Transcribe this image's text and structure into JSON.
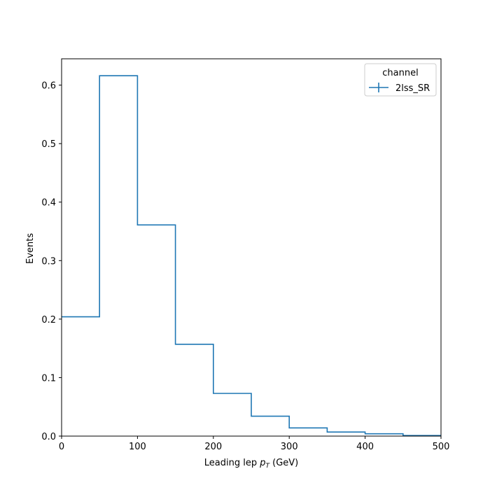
{
  "chart_data": {
    "type": "histogram",
    "series": [
      {
        "name": "2lss_SR",
        "color": "#1f77b4",
        "bin_edges": [
          0,
          50,
          100,
          150,
          200,
          250,
          300,
          350,
          400,
          450,
          500
        ],
        "values": [
          0.204,
          0.616,
          0.361,
          0.157,
          0.073,
          0.034,
          0.014,
          0.007,
          0.004,
          0.001
        ]
      }
    ],
    "xlabel": {
      "prefix": "Leading lep ",
      "symbol": "p",
      "subscript": "T",
      "suffix": " (GeV)"
    },
    "ylabel": "Events",
    "xlim": [
      0,
      500
    ],
    "ylim": [
      0,
      0.645
    ],
    "xticks": [
      0,
      100,
      200,
      300,
      400,
      500
    ],
    "yticks": [
      0.0,
      0.1,
      0.2,
      0.3,
      0.4,
      0.5,
      0.6
    ],
    "ytick_labels": [
      "0.0",
      "0.1",
      "0.2",
      "0.3",
      "0.4",
      "0.5",
      "0.6"
    ],
    "legend": {
      "title": "channel",
      "placement": "top-right"
    },
    "grid": false
  }
}
